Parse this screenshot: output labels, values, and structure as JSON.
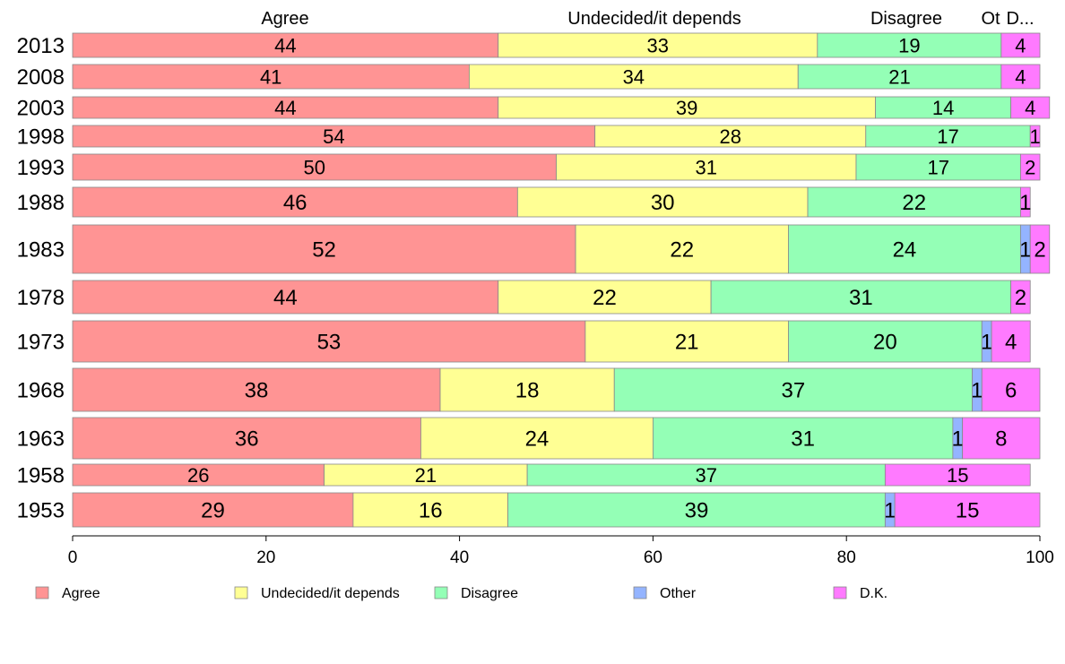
{
  "chart_data": {
    "type": "bar",
    "orientation": "horizontal",
    "stacked": true,
    "categories": [
      "2013",
      "2008",
      "2003",
      "1998",
      "1993",
      "1988",
      "1983",
      "1978",
      "1973",
      "1968",
      "1963",
      "1958",
      "1953"
    ],
    "series": [
      {
        "name": "Agree",
        "color": "#ff9494",
        "values": [
          44,
          41,
          44,
          54,
          50,
          46,
          52,
          44,
          53,
          38,
          36,
          26,
          29
        ]
      },
      {
        "name": "Undecided/it depends",
        "color": "#ffff94",
        "values": [
          33,
          34,
          39,
          28,
          31,
          30,
          22,
          22,
          21,
          18,
          24,
          21,
          16
        ]
      },
      {
        "name": "Disagree",
        "color": "#94ffb6",
        "values": [
          19,
          21,
          14,
          17,
          17,
          22,
          24,
          31,
          20,
          37,
          31,
          37,
          39
        ]
      },
      {
        "name": "Other",
        "color": "#94b4ff",
        "values": [
          0,
          0,
          0,
          0,
          0,
          0,
          1,
          0,
          1,
          1,
          1,
          0,
          1
        ]
      },
      {
        "name": "D.K.",
        "color": "#ff7aff",
        "values": [
          4,
          4,
          4,
          1,
          2,
          1,
          2,
          2,
          4,
          6,
          8,
          15,
          15
        ]
      }
    ],
    "segment_labels": [
      [
        "44",
        "33",
        "19",
        "",
        "4"
      ],
      [
        "41",
        "34",
        "21",
        "",
        "4"
      ],
      [
        "44",
        "39",
        "14",
        "",
        "4"
      ],
      [
        "54",
        "28",
        "17",
        "",
        "1"
      ],
      [
        "50",
        "31",
        "17",
        "",
        "2"
      ],
      [
        "46",
        "30",
        "22",
        "",
        "1"
      ],
      [
        "52",
        "22",
        "24",
        "1",
        "2"
      ],
      [
        "44",
        "22",
        "31",
        "",
        "2"
      ],
      [
        "53",
        "21",
        "20",
        "1",
        "4"
      ],
      [
        "38",
        "18",
        "37",
        "1",
        "6"
      ],
      [
        "36",
        "24",
        "31",
        "1",
        "8"
      ],
      [
        "26",
        "21",
        "37",
        "",
        "15"
      ],
      [
        "29",
        "16",
        "39",
        "1",
        "15"
      ]
    ],
    "top_labels": [
      "Agree",
      "Undecided/it depends",
      "Disagree",
      "Ot",
      "D..."
    ],
    "xlim": [
      0,
      100
    ],
    "xticks": [
      "0",
      "20",
      "40",
      "60",
      "80",
      "100"
    ],
    "grid": false,
    "legend_position": "bottom"
  }
}
